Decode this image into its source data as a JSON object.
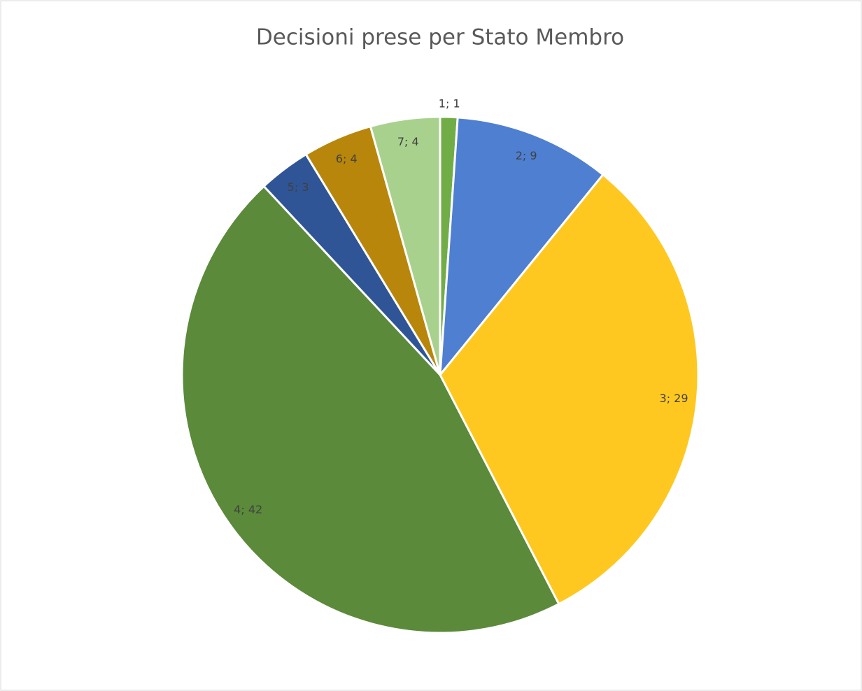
{
  "chart_data": {
    "type": "pie",
    "title": "Decisioni prese per Stato Membro",
    "values": [
      1,
      9,
      29,
      42,
      3,
      4,
      4
    ],
    "value_labels": [
      "1; 1",
      "2; 9",
      "3; 29",
      "4; 42",
      "5; 3",
      "6; 4",
      "7; 4"
    ],
    "colors": [
      "#70ad47",
      "#4f7fd0",
      "#ffc820",
      "#5a8a3a",
      "#2f5597",
      "#b8860b",
      "#a9d18e"
    ]
  }
}
